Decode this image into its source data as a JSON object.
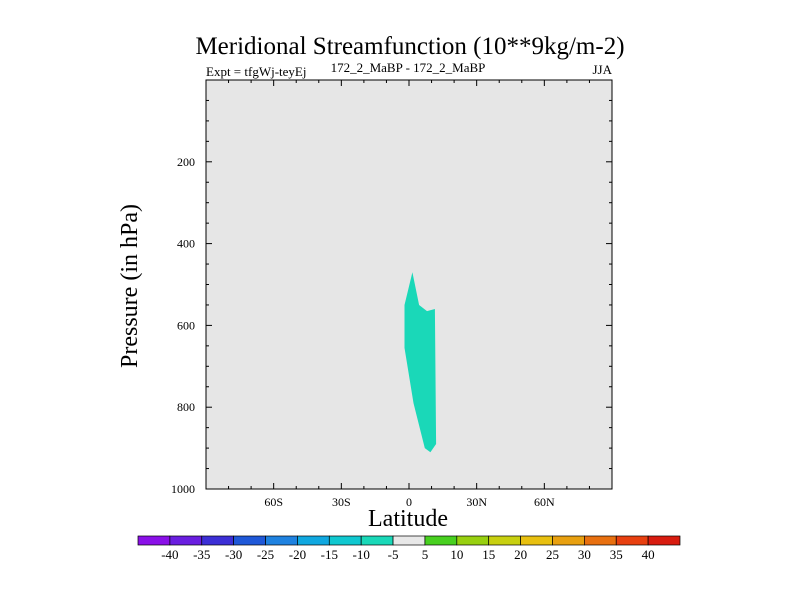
{
  "chart_data": {
    "type": "contour",
    "title": "Meridional Streamfunction (10**9kg/m-2)",
    "subtitle_left": "Expt = tfgWj-teyEj",
    "subtitle_center": "172_2_MaBP - 172_2_MaBP",
    "subtitle_right": "JJA",
    "xlabel": "Latitude",
    "ylabel": "Pressure (in hPa)",
    "xlim": [
      -90,
      90
    ],
    "ylim": [
      0,
      1000
    ],
    "y_inverted": true,
    "x_ticks": [
      {
        "value": -60,
        "label": "60S"
      },
      {
        "value": -30,
        "label": "30S"
      },
      {
        "value": 0,
        "label": "0"
      },
      {
        "value": 30,
        "label": "30N"
      },
      {
        "value": 60,
        "label": "60N"
      }
    ],
    "y_ticks": [
      {
        "value": 200,
        "label": "200"
      },
      {
        "value": 400,
        "label": "400"
      },
      {
        "value": 600,
        "label": "600"
      },
      {
        "value": 800,
        "label": "800"
      },
      {
        "value": 1000,
        "label": "1000"
      }
    ],
    "background_fill": "#e6e6e6",
    "regions": [
      {
        "label": "-10 to -5",
        "color": "#1ad8b8",
        "points": [
          [
            1.5,
            470
          ],
          [
            4.5,
            550
          ],
          [
            8.0,
            565
          ],
          [
            11.5,
            560
          ],
          [
            12.0,
            890
          ],
          [
            9.5,
            910
          ],
          [
            7.0,
            900
          ],
          [
            2.0,
            790
          ],
          [
            -2.0,
            655
          ],
          [
            -2.0,
            550
          ]
        ]
      }
    ],
    "colorbar": {
      "labels": [
        "-40",
        "-35",
        "-30",
        "-25",
        "-20",
        "-15",
        "-10",
        "-5",
        "5",
        "10",
        "15",
        "20",
        "25",
        "30",
        "35",
        "40"
      ],
      "colors": [
        "#8a10e8",
        "#6a1ee0",
        "#3c2fd6",
        "#1f58d8",
        "#1f82e0",
        "#10a8e0",
        "#10c8d0",
        "#1ad8b8",
        "#e8e8e8",
        "#48d020",
        "#98d010",
        "#c8d010",
        "#e8c010",
        "#e8a010",
        "#e87010",
        "#e84010",
        "#d81c10"
      ]
    }
  }
}
